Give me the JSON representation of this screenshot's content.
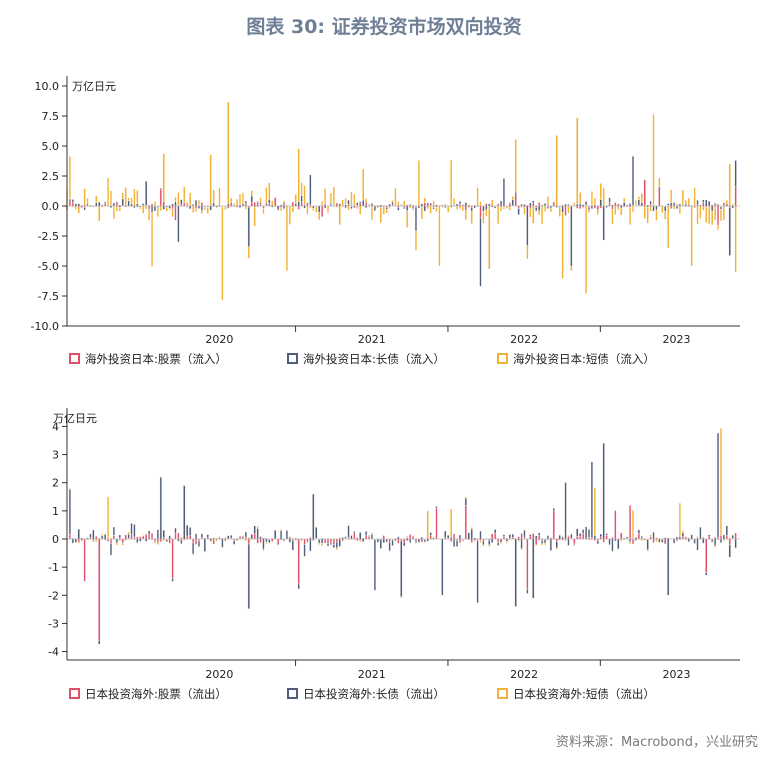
{
  "title": "图表 30: 证券投资市场双向投资",
  "source": "资料来源：Macrobond，兴业研究",
  "colors": {
    "stock": "#e0506a",
    "long": "#4f5d7a",
    "short": "#f2b236",
    "axis": "#333333",
    "title": "#6f7f96"
  },
  "chart_data": [
    {
      "type": "bar",
      "stacked": true,
      "unit": "万亿日元",
      "ylim": [
        -10.0,
        10.0
      ],
      "yticks": [
        "10.0",
        "7.5",
        "5.0",
        "2.5",
        "0.0",
        "-2.5",
        "-5.0",
        "-7.5",
        "-10.0"
      ],
      "ytick_values": [
        10,
        7.5,
        5,
        2.5,
        0,
        -2.5,
        -5,
        -7.5,
        -10
      ],
      "x_start": "2019-07",
      "x_end": "2023-12",
      "year_labels": [
        "2020",
        "2021",
        "2022",
        "2023"
      ],
      "year_label_dates": [
        "2020-07",
        "2021-07",
        "2022-07",
        "2023-07"
      ],
      "year_ticks": [
        "2021-01",
        "2022-01",
        "2023-01"
      ],
      "grid": false,
      "legend_position": "bottom",
      "series": [
        {
          "name": "海外投资日本:股票（流入）",
          "color": "#e0506a",
          "peaks": [
            {
              "date": "2019-07-10",
              "value": 0.6
            },
            {
              "date": "2020-02-15",
              "value": 1.4
            },
            {
              "date": "2020-03-20",
              "value": -1.2
            },
            {
              "date": "2020-11-10",
              "value": 0.7
            },
            {
              "date": "2021-03-05",
              "value": -0.9
            },
            {
              "date": "2022-03-15",
              "value": -1.0
            },
            {
              "date": "2022-06-10",
              "value": 1.0
            },
            {
              "date": "2022-10-10",
              "value": -0.8
            },
            {
              "date": "2023-04-15",
              "value": 2.2
            },
            {
              "date": "2023-05-20",
              "value": 1.6
            },
            {
              "date": "2023-10-10",
              "value": -1.6
            },
            {
              "date": "2023-11-20",
              "value": 1.6
            }
          ]
        },
        {
          "name": "海外投资日本:长债（流入）",
          "color": "#4f5d7a",
          "peaks": [
            {
              "date": "2020-01-10",
              "value": 2.0
            },
            {
              "date": "2020-03-25",
              "value": -3.0
            },
            {
              "date": "2020-09-10",
              "value": -3.3
            },
            {
              "date": "2021-02-05",
              "value": 2.5
            },
            {
              "date": "2021-10-15",
              "value": -2.0
            },
            {
              "date": "2022-03-20",
              "value": -5.7
            },
            {
              "date": "2022-05-10",
              "value": 2.3
            },
            {
              "date": "2022-07-10",
              "value": -3.3
            },
            {
              "date": "2022-10-20",
              "value": -5.0
            },
            {
              "date": "2023-01-10",
              "value": -2.8
            },
            {
              "date": "2023-03-15",
              "value": 4.1
            },
            {
              "date": "2023-11-10",
              "value": -4.0
            },
            {
              "date": "2023-11-25",
              "value": -5.0
            },
            {
              "date": "2023-12-10",
              "value": 2.2
            }
          ]
        },
        {
          "name": "海外投资日本:短债（流入）",
          "color": "#f2b236",
          "peaks": [
            {
              "date": "2019-07-05",
              "value": 3.5
            },
            {
              "date": "2019-10-10",
              "value": 2.3
            },
            {
              "date": "2020-01-20",
              "value": -4.5
            },
            {
              "date": "2020-02-20",
              "value": 4.0
            },
            {
              "date": "2020-06-10",
              "value": 4.2
            },
            {
              "date": "2020-07-05",
              "value": -7.8
            },
            {
              "date": "2020-07-25",
              "value": 8.5
            },
            {
              "date": "2020-12-10",
              "value": -5.4
            },
            {
              "date": "2021-01-10",
              "value": 4.4
            },
            {
              "date": "2021-06-10",
              "value": 2.6
            },
            {
              "date": "2021-10-20",
              "value": 3.8
            },
            {
              "date": "2021-12-10",
              "value": -5.0
            },
            {
              "date": "2022-01-10",
              "value": 3.8
            },
            {
              "date": "2022-04-10",
              "value": -5.2
            },
            {
              "date": "2022-06-10",
              "value": 4.4
            },
            {
              "date": "2022-09-20",
              "value": 5.9
            },
            {
              "date": "2022-10-05",
              "value": -5.5
            },
            {
              "date": "2022-11-10",
              "value": 7.2
            },
            {
              "date": "2022-11-25",
              "value": -7.3
            },
            {
              "date": "2023-05-10",
              "value": 7.6
            },
            {
              "date": "2023-06-10",
              "value": -3.5
            },
            {
              "date": "2023-08-10",
              "value": -5.0
            },
            {
              "date": "2023-11-10",
              "value": 3.5
            },
            {
              "date": "2023-12-05",
              "value": -5.5
            }
          ]
        }
      ]
    },
    {
      "type": "bar",
      "stacked": true,
      "unit": "万亿日元",
      "ylim": [
        -4.3,
        4.3
      ],
      "yticks": [
        "4",
        "3",
        "2",
        "1",
        "0",
        "-1",
        "-2",
        "-3",
        "-4"
      ],
      "ytick_values": [
        4,
        3,
        2,
        1,
        0,
        -1,
        -2,
        -3,
        -4
      ],
      "x_start": "2019-07",
      "x_end": "2023-12",
      "year_labels": [
        "2020",
        "2021",
        "2022",
        "2023"
      ],
      "year_label_dates": [
        "2020-07",
        "2021-07",
        "2022-07",
        "2023-07"
      ],
      "year_ticks": [
        "2021-01",
        "2022-01",
        "2023-01"
      ],
      "grid": false,
      "legend_position": "bottom",
      "series": [
        {
          "name": "日本投资海外:股票（流出）",
          "color": "#e0506a",
          "peaks": [
            {
              "date": "2019-09-15",
              "value": -3.6
            },
            {
              "date": "2019-08-10",
              "value": -1.5
            },
            {
              "date": "2020-03-10",
              "value": -1.4
            },
            {
              "date": "2021-01-10",
              "value": -1.6
            },
            {
              "date": "2021-12-05",
              "value": 1.1
            },
            {
              "date": "2022-02-10",
              "value": 1.2
            },
            {
              "date": "2022-07-10",
              "value": -1.8
            },
            {
              "date": "2022-09-10",
              "value": 1.0
            },
            {
              "date": "2023-02-10",
              "value": 1.0
            },
            {
              "date": "2023-03-10",
              "value": 1.2
            },
            {
              "date": "2023-09-10",
              "value": -1.2
            }
          ]
        },
        {
          "name": "日本投资海外:长债（流出）",
          "color": "#4f5d7a",
          "peaks": [
            {
              "date": "2019-07-10",
              "value": 1.6
            },
            {
              "date": "2020-02-10",
              "value": 2.2
            },
            {
              "date": "2020-04-10",
              "value": 1.9
            },
            {
              "date": "2020-09-10",
              "value": -2.3
            },
            {
              "date": "2021-02-10",
              "value": 1.6
            },
            {
              "date": "2021-07-10",
              "value": -1.8
            },
            {
              "date": "2021-09-10",
              "value": -2.0
            },
            {
              "date": "2021-12-20",
              "value": -2.0
            },
            {
              "date": "2022-03-10",
              "value": -2.2
            },
            {
              "date": "2022-06-10",
              "value": -2.4
            },
            {
              "date": "2022-07-20",
              "value": -2.1
            },
            {
              "date": "2022-10-10",
              "value": 2.0
            },
            {
              "date": "2022-12-10",
              "value": 2.7
            },
            {
              "date": "2023-01-10",
              "value": 3.4
            },
            {
              "date": "2023-06-10",
              "value": -2.0
            },
            {
              "date": "2023-10-10",
              "value": 3.7
            }
          ]
        },
        {
          "name": "日本投资海外:短债（流出）",
          "color": "#f2b236",
          "peaks": [
            {
              "date": "2019-10-10",
              "value": 1.5
            },
            {
              "date": "2021-11-10",
              "value": 1.0
            },
            {
              "date": "2022-01-10",
              "value": 1.0
            },
            {
              "date": "2022-12-15",
              "value": 1.7
            },
            {
              "date": "2023-03-20",
              "value": 1.0
            },
            {
              "date": "2023-07-10",
              "value": 1.2
            },
            {
              "date": "2023-10-15",
              "value": 3.8
            }
          ]
        }
      ]
    }
  ]
}
